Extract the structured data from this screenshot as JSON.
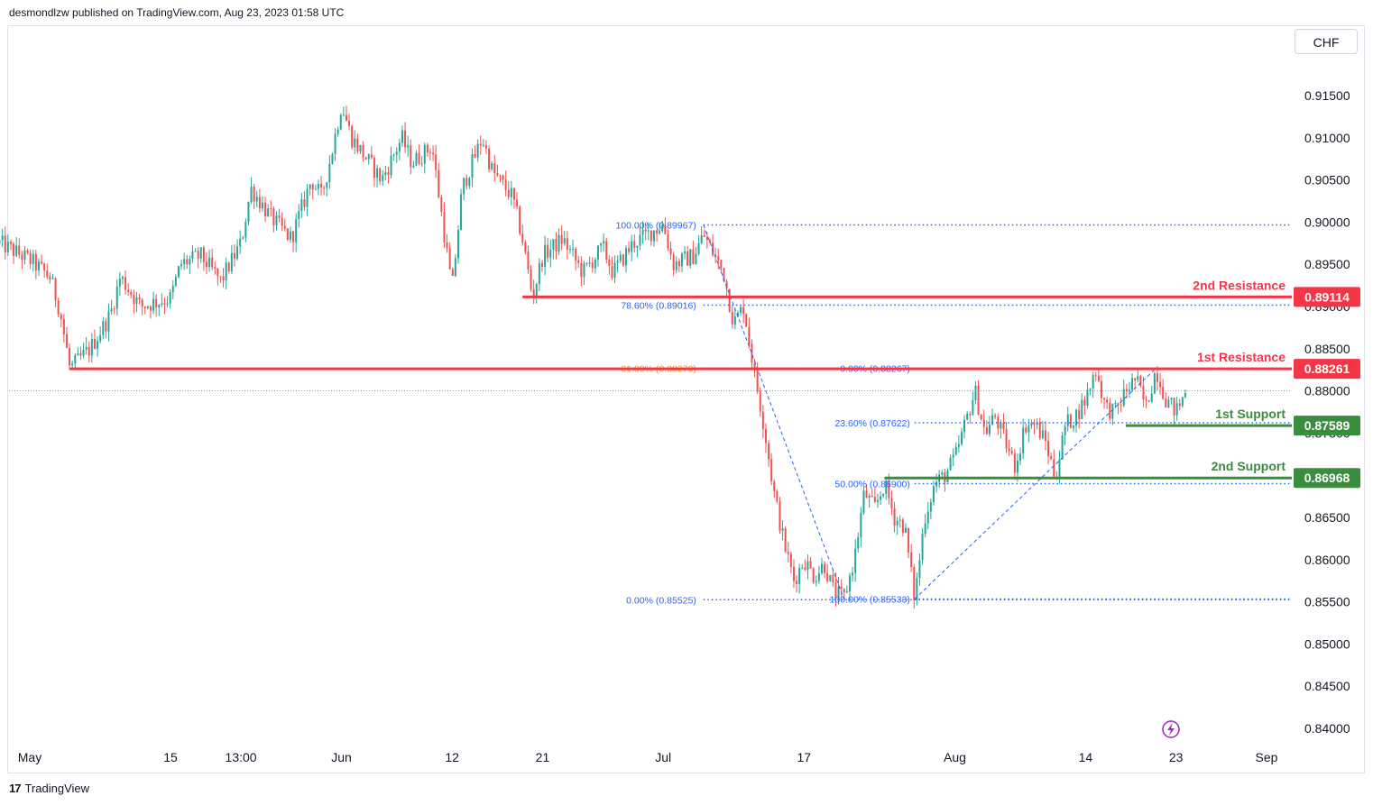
{
  "header": {
    "publisher_line": "desmondlzw published on TradingView.com, Aug 23, 2023 01:58 UTC"
  },
  "currency_button": {
    "label": "CHF"
  },
  "footer": {
    "logo_glyph": "17",
    "brand": "TradingView"
  },
  "colors": {
    "up": "#26a69a",
    "down": "#ef5350",
    "resistance": "#f23645",
    "support": "#388e3c",
    "fib": "#2962ff",
    "fib_text": "#2962ff",
    "fib_orange": "#ff9800",
    "last_price": "#9598a1",
    "lightning": "#9c27b0"
  },
  "chart_data": {
    "type": "candlestick",
    "symbol_currency": "CHF",
    "y_axis": {
      "range": [
        0.837,
        0.9195
      ],
      "ticks": [
        "0.91500",
        "0.91000",
        "0.90500",
        "0.90000",
        "0.89500",
        "0.89000",
        "0.88500",
        "0.88000",
        "0.87500",
        "0.86500",
        "0.86000",
        "0.85500",
        "0.85000",
        "0.84500",
        "0.84000"
      ],
      "tick_values": [
        0.915,
        0.91,
        0.905,
        0.9,
        0.895,
        0.89,
        0.885,
        0.88,
        0.875,
        0.865,
        0.86,
        0.855,
        0.85,
        0.845,
        0.84
      ]
    },
    "x_axis": {
      "ticks": [
        {
          "label": "May",
          "x": "2023-05-01"
        },
        {
          "label": "15",
          "x": "2023-05-15"
        },
        {
          "label": "13:00",
          "x": "2023-05-22"
        },
        {
          "label": "Jun",
          "x": "2023-06-01"
        },
        {
          "label": "12",
          "x": "2023-06-12"
        },
        {
          "label": "21",
          "x": "2023-06-21"
        },
        {
          "label": "Jul",
          "x": "2023-07-03"
        },
        {
          "label": "17",
          "x": "2023-07-17"
        },
        {
          "label": "Aug",
          "x": "2023-08-01"
        },
        {
          "label": "14",
          "x": "2023-08-14"
        },
        {
          "label": "23",
          "x": "2023-08-23"
        },
        {
          "label": "Sep",
          "x": "2023-09-01"
        }
      ]
    },
    "price_path": [
      [
        "2023-04-28",
        0.8975
      ],
      [
        "2023-05-01",
        0.8955
      ],
      [
        "2023-05-03",
        0.8935
      ],
      [
        "2023-05-04",
        0.8895
      ],
      [
        "2023-05-05",
        0.8826
      ],
      [
        "2023-05-07",
        0.885
      ],
      [
        "2023-05-09",
        0.889
      ],
      [
        "2023-05-10",
        0.8935
      ],
      [
        "2023-05-12",
        0.89
      ],
      [
        "2023-05-15",
        0.891
      ],
      [
        "2023-05-16",
        0.895
      ],
      [
        "2023-05-18",
        0.896
      ],
      [
        "2023-05-20",
        0.893
      ],
      [
        "2023-05-22",
        0.8975
      ],
      [
        "2023-05-23",
        0.904
      ],
      [
        "2023-05-25",
        0.9005
      ],
      [
        "2023-05-27",
        0.898
      ],
      [
        "2023-05-29",
        0.905
      ],
      [
        "2023-05-30",
        0.903
      ],
      [
        "2023-05-31",
        0.908
      ],
      [
        "2023-06-01",
        0.914
      ],
      [
        "2023-06-02",
        0.91
      ],
      [
        "2023-06-05",
        0.905
      ],
      [
        "2023-06-07",
        0.91
      ],
      [
        "2023-06-08",
        0.907
      ],
      [
        "2023-06-10",
        0.909
      ],
      [
        "2023-06-12",
        0.892
      ],
      [
        "2023-06-13",
        0.904
      ],
      [
        "2023-06-15",
        0.91
      ],
      [
        "2023-06-16",
        0.906
      ],
      [
        "2023-06-18",
        0.903
      ],
      [
        "2023-06-19",
        0.898
      ],
      [
        "2023-06-20",
        0.8911
      ],
      [
        "2023-06-21",
        0.896
      ],
      [
        "2023-06-23",
        0.898
      ],
      [
        "2023-06-25",
        0.894
      ],
      [
        "2023-06-27",
        0.897
      ],
      [
        "2023-06-28",
        0.894
      ],
      [
        "2023-06-30",
        0.8975
      ],
      [
        "2023-07-03",
        0.8997
      ],
      [
        "2023-07-04",
        0.895
      ],
      [
        "2023-07-06",
        0.896
      ],
      [
        "2023-07-07",
        0.8985
      ],
      [
        "2023-07-09",
        0.894
      ],
      [
        "2023-07-10",
        0.888
      ],
      [
        "2023-07-11",
        0.89
      ],
      [
        "2023-07-12",
        0.8826
      ],
      [
        "2023-07-13",
        0.876
      ],
      [
        "2023-07-14",
        0.868
      ],
      [
        "2023-07-15",
        0.862
      ],
      [
        "2023-07-16",
        0.8575
      ],
      [
        "2023-07-17",
        0.86
      ],
      [
        "2023-07-18",
        0.858
      ],
      [
        "2023-07-19",
        0.8595
      ],
      [
        "2023-07-20",
        0.856
      ],
      [
        "2023-07-21",
        0.8555
      ],
      [
        "2023-07-22",
        0.86
      ],
      [
        "2023-07-23",
        0.868
      ],
      [
        "2023-07-24",
        0.866
      ],
      [
        "2023-07-25",
        0.869
      ],
      [
        "2023-07-26",
        0.865
      ],
      [
        "2023-07-27",
        0.864
      ],
      [
        "2023-07-28",
        0.8553
      ],
      [
        "2023-07-29",
        0.865
      ],
      [
        "2023-07-30",
        0.869
      ],
      [
        "2023-07-31",
        0.87
      ],
      [
        "2023-08-01",
        0.872
      ],
      [
        "2023-08-02",
        0.876
      ],
      [
        "2023-08-03",
        0.88
      ],
      [
        "2023-08-04",
        0.875
      ],
      [
        "2023-08-05",
        0.877
      ],
      [
        "2023-08-06",
        0.874
      ],
      [
        "2023-08-07",
        0.871
      ],
      [
        "2023-08-08",
        0.876
      ],
      [
        "2023-08-09",
        0.876
      ],
      [
        "2023-08-10",
        0.874
      ],
      [
        "2023-08-11",
        0.8697
      ],
      [
        "2023-08-12",
        0.876
      ],
      [
        "2023-08-13",
        0.877
      ],
      [
        "2023-08-14",
        0.879
      ],
      [
        "2023-08-15",
        0.8826
      ],
      [
        "2023-08-16",
        0.878
      ],
      [
        "2023-08-17",
        0.8775
      ],
      [
        "2023-08-18",
        0.88
      ],
      [
        "2023-08-19",
        0.8815
      ],
      [
        "2023-08-20",
        0.878
      ],
      [
        "2023-08-21",
        0.8826
      ],
      [
        "2023-08-22",
        0.879
      ],
      [
        "2023-08-23",
        0.8775
      ],
      [
        "2023-08-24",
        0.88
      ]
    ],
    "key_levels": [
      {
        "label": "2nd Resistance",
        "value": 0.89114,
        "display": "0.89114",
        "kind": "resistance",
        "from": "2023-06-19"
      },
      {
        "label": "1st Resistance",
        "value": 0.88261,
        "display": "0.88261",
        "kind": "resistance",
        "from": "2023-05-05"
      },
      {
        "label": "1st Support",
        "value": 0.87589,
        "display": "0.87589",
        "kind": "support",
        "from": "2023-08-18"
      },
      {
        "label": "2nd Support",
        "value": 0.86968,
        "display": "0.86968",
        "kind": "support",
        "from": "2023-07-25"
      }
    ],
    "fib_retracement_1": {
      "start": [
        "2023-07-07",
        0.89967
      ],
      "end": [
        "2023-07-21",
        0.85525
      ],
      "levels": [
        {
          "label": "100.00% (0.89967)",
          "value": 0.89967,
          "orange": false
        },
        {
          "label": "78.60% (0.89016)",
          "value": 0.89016,
          "orange": false
        },
        {
          "label": "61.80% (0.88270)",
          "value": 0.8827,
          "orange": true
        },
        {
          "label": "0.00% (0.85525)",
          "value": 0.85525,
          "orange": false
        }
      ]
    },
    "fib_retracement_2": {
      "start": [
        "2023-07-28",
        0.85533
      ],
      "end": [
        "2023-08-21",
        0.88267
      ],
      "levels": [
        {
          "label": "0.00% (0.88267)",
          "value": 0.88267
        },
        {
          "label": "23.60% (0.87622)",
          "value": 0.87622
        },
        {
          "label": "50.00% (0.86900)",
          "value": 0.869
        },
        {
          "label": "100.00% (0.85533)",
          "value": 0.85533
        }
      ]
    },
    "last_price": 0.88
  }
}
